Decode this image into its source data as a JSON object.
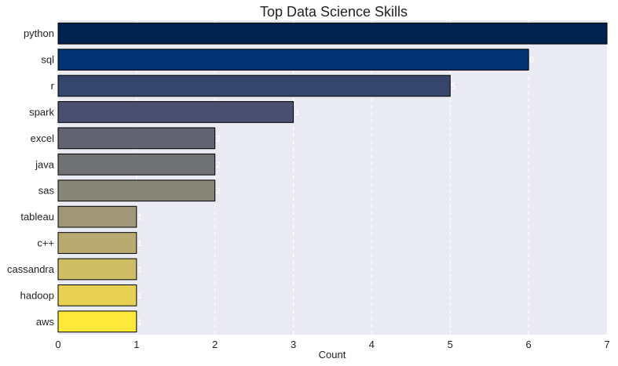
{
  "chart_data": {
    "type": "bar",
    "orientation": "horizontal",
    "title": "Top Data Science Skills",
    "xlabel": "Count",
    "ylabel": "",
    "categories": [
      "python",
      "sql",
      "r",
      "spark",
      "excel",
      "java",
      "sas",
      "tableau",
      "c++",
      "cassandra",
      "hadoop",
      "aws"
    ],
    "values": [
      7,
      6,
      5,
      3,
      2,
      2,
      2,
      1,
      1,
      1,
      1,
      1
    ],
    "xlim": [
      0,
      7
    ],
    "xticks": [
      "0",
      "1",
      "2",
      "3",
      "4",
      "5",
      "6",
      "7"
    ],
    "grid": "vertical",
    "colors": [
      "#00224e",
      "#023373",
      "#35456c",
      "#4a5170",
      "#626370",
      "#707173",
      "#878478",
      "#9f9777",
      "#b8aa70",
      "#cfbd66",
      "#e6d152",
      "#fee838"
    ],
    "plot_background": "#eaeaf2",
    "data_labels": [
      "7",
      "6",
      "5",
      "3",
      "2",
      "2",
      "2",
      "1",
      "1",
      "1",
      "1",
      "1"
    ]
  }
}
